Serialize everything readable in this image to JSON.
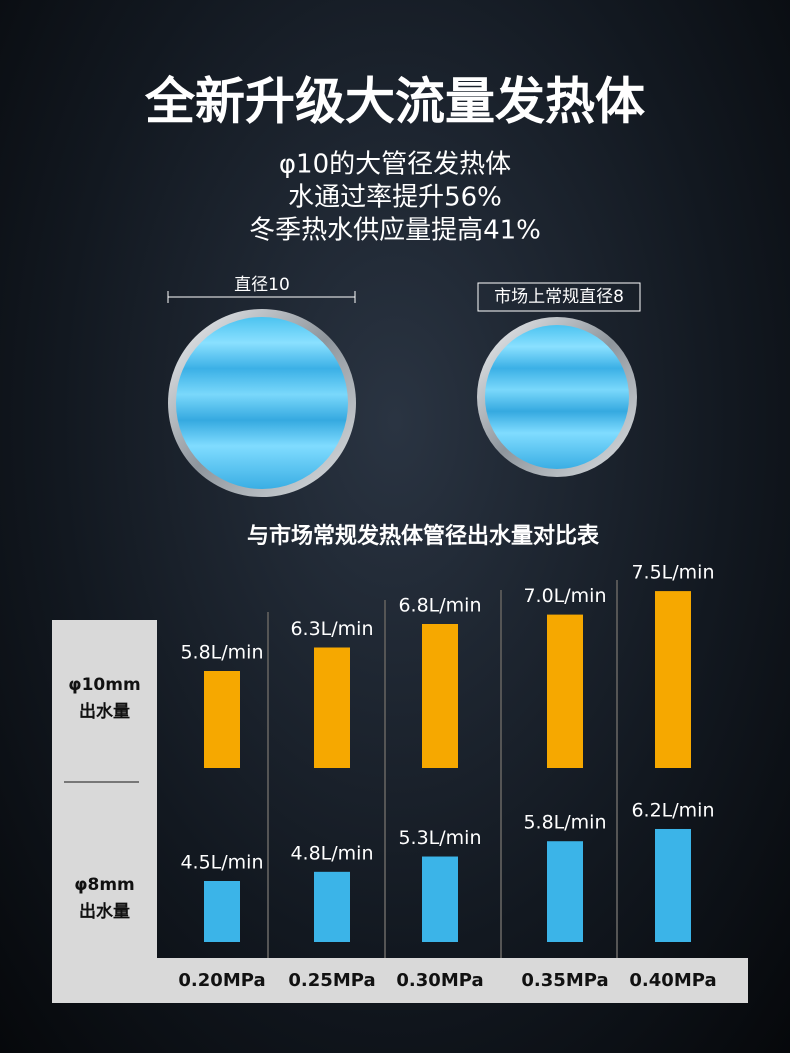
{
  "header": {
    "title": "全新升级大流量发热体",
    "lines": [
      "φ10的大管径发热体",
      "水通过率提升56%",
      "冬季热水供应量提高41%"
    ]
  },
  "pipes": [
    {
      "label": "直径10"
    },
    {
      "label": "市场上常规直径8"
    }
  ],
  "chart_data": {
    "type": "bar",
    "title": "与市场常规发热体管径出水量对比表",
    "categories": [
      "0.20MPa",
      "0.25MPa",
      "0.30MPa",
      "0.35MPa",
      "0.40MPa"
    ],
    "series": [
      {
        "name": "φ10mm\n出水量",
        "color": "#f6a800",
        "values": [
          5.8,
          6.3,
          6.8,
          7.0,
          7.5
        ],
        "value_labels": [
          "5.8L/min",
          "6.3L/min",
          "6.8L/min",
          "7.0L/min",
          "7.5L/min"
        ]
      },
      {
        "name": "φ8mm\n出水量",
        "color": "#3bb4e8",
        "values": [
          4.5,
          4.8,
          5.3,
          5.8,
          6.2
        ],
        "value_labels": [
          "4.5L/min",
          "4.8L/min",
          "5.3L/min",
          "5.8L/min",
          "6.2L/min"
        ]
      }
    ]
  }
}
